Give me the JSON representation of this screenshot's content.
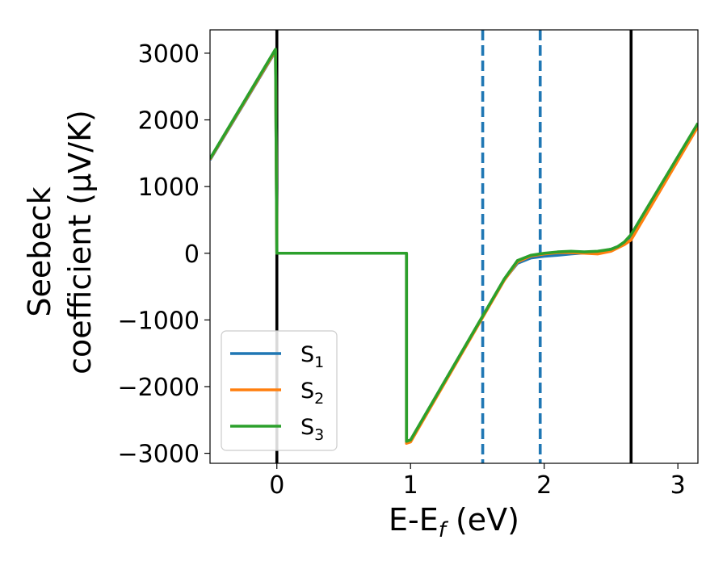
{
  "chart_data": {
    "type": "line",
    "xlabel": {
      "main": "E-E",
      "sub": "f",
      "tail": " (eV)"
    },
    "ylabel": {
      "line1": "Seebeck",
      "line2": "coefficient  (μV/K)"
    },
    "xlim": [
      -0.5,
      3.15
    ],
    "ylim": [
      -3150,
      3350
    ],
    "xticks": [
      0,
      1,
      2,
      3
    ],
    "xtick_labels": [
      "0",
      "1",
      "2",
      "3"
    ],
    "yticks": [
      3000,
      2000,
      1000,
      0,
      -1000,
      -2000,
      -3000
    ],
    "ytick_labels": [
      "3000",
      "2000",
      "1000",
      "0",
      "−1000",
      "−2000",
      "−3000"
    ],
    "grid": false,
    "legend_position": "lower-left",
    "vlines": [
      {
        "x": 0,
        "style": "solid",
        "color": "#000000"
      },
      {
        "x": 2.65,
        "style": "solid",
        "color": "#000000"
      },
      {
        "x": 1.54,
        "style": "dashed",
        "color": "#1f77b4"
      },
      {
        "x": 1.97,
        "style": "dashed",
        "color": "#1f77b4"
      }
    ],
    "series": [
      {
        "name": "S",
        "sub": "1",
        "color": "#1f77b4",
        "x": [
          -0.5,
          -0.01,
          0.0,
          0.02,
          0.97,
          0.97,
          1.0,
          1.54,
          1.7,
          1.8,
          1.9,
          2.0,
          2.1,
          2.2,
          2.3,
          2.4,
          2.5,
          2.55,
          2.6,
          2.65,
          3.15
        ],
        "y": [
          1400,
          3030,
          0,
          0,
          0,
          -2830,
          -2810,
          -950,
          -400,
          -150,
          -70,
          -45,
          -30,
          -10,
          5,
          20,
          60,
          100,
          160,
          250,
          1930
        ]
      },
      {
        "name": "S",
        "sub": "2",
        "color": "#ff7f0e",
        "x": [
          -0.5,
          -0.01,
          0.0,
          0.02,
          0.97,
          0.97,
          1.0,
          1.54,
          1.7,
          1.8,
          1.9,
          2.0,
          2.1,
          2.2,
          2.3,
          2.4,
          2.5,
          2.55,
          2.6,
          2.65,
          3.15
        ],
        "y": [
          1410,
          3040,
          0,
          0,
          0,
          -2850,
          -2830,
          -960,
          -410,
          -130,
          -40,
          -10,
          10,
          10,
          0,
          -10,
          30,
          80,
          130,
          200,
          1900
        ]
      },
      {
        "name": "S",
        "sub": "3",
        "color": "#2ca02c",
        "x": [
          -0.5,
          -0.01,
          0.0,
          0.02,
          0.97,
          0.97,
          1.0,
          1.54,
          1.7,
          1.8,
          1.9,
          2.0,
          2.1,
          2.2,
          2.3,
          2.4,
          2.5,
          2.55,
          2.6,
          2.65,
          3.15
        ],
        "y": [
          1420,
          3060,
          0,
          0,
          0,
          -2820,
          -2800,
          -940,
          -390,
          -110,
          -30,
          0,
          20,
          30,
          20,
          30,
          60,
          100,
          170,
          280,
          1950
        ]
      }
    ]
  }
}
